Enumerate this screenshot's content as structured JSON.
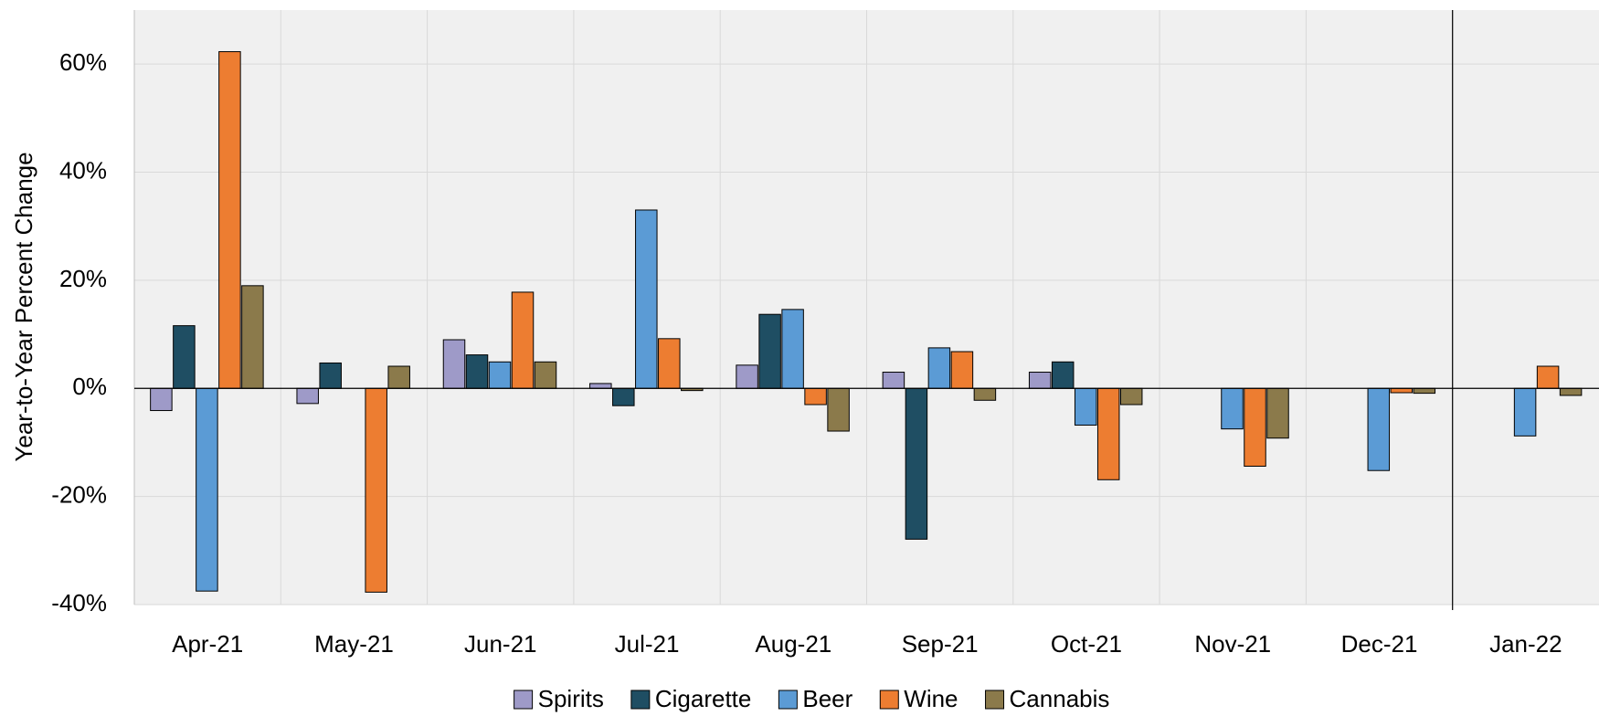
{
  "chart_data": {
    "type": "bar",
    "y_label": "Year-to-Year Percent Change",
    "categories": [
      "Apr-21",
      "May-21",
      "Jun-21",
      "Jul-21",
      "Aug-21",
      "Sep-21",
      "Oct-21",
      "Nov-21",
      "Dec-21",
      "Jan-22"
    ],
    "series": [
      {
        "name": "Spirits",
        "color": "#9e9ac8",
        "values": [
          -4.1,
          -2.8,
          9.0,
          0.9,
          4.3,
          3.0,
          3.0,
          null,
          null,
          null
        ]
      },
      {
        "name": "Cigarette",
        "color": "#1f4e63",
        "values": [
          11.6,
          4.7,
          6.2,
          -3.2,
          13.7,
          -27.9,
          4.9,
          null,
          null,
          null
        ]
      },
      {
        "name": "Beer",
        "color": "#5b9bd5",
        "values": [
          -37.5,
          null,
          4.9,
          33.0,
          14.6,
          7.5,
          -6.8,
          -7.5,
          -15.2,
          -8.8
        ]
      },
      {
        "name": "Wine",
        "color": "#ed7d31",
        "values": [
          62.3,
          -37.7,
          17.8,
          9.2,
          -3.0,
          6.8,
          -16.9,
          -14.4,
          -0.8,
          4.1
        ]
      },
      {
        "name": "Cannabis",
        "color": "#8b7a4b",
        "values": [
          19.0,
          4.1,
          4.9,
          -0.4,
          -7.9,
          -2.2,
          -3.0,
          -9.2,
          -0.9,
          -1.3
        ]
      }
    ],
    "ylim": [
      -40,
      70
    ],
    "yticks": [
      {
        "value": -40,
        "label": "-40%"
      },
      {
        "value": -20,
        "label": "-20%"
      },
      {
        "value": 0,
        "label": "0%"
      },
      {
        "value": 20,
        "label": "20%"
      },
      {
        "value": 40,
        "label": "40%"
      },
      {
        "value": 60,
        "label": "60%"
      }
    ],
    "grid": true,
    "legend": "bottom"
  }
}
